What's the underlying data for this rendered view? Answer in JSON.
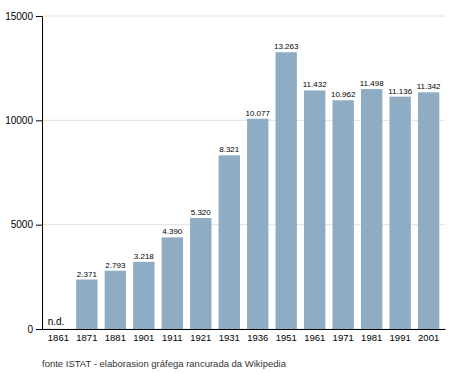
{
  "chart_data": {
    "type": "bar",
    "categories": [
      "1861",
      "1871",
      "1881",
      "1901",
      "1911",
      "1921",
      "1931",
      "1936",
      "1951",
      "1961",
      "1971",
      "1981",
      "1991",
      "2001"
    ],
    "values": [
      null,
      2371,
      2793,
      3218,
      4390,
      5320,
      8321,
      10077,
      13263,
      11432,
      10962,
      11498,
      11136,
      11342
    ],
    "value_labels": [
      "n.d.",
      "2.371",
      "2.793",
      "3.218",
      "4.390",
      "5.320",
      "8.321",
      "10.077",
      "13.263",
      "11.432",
      "10.962",
      "11.498",
      "11.136",
      "11.342"
    ],
    "data_labels": true,
    "color": "#8eacc4",
    "ylim": [
      0,
      15000
    ],
    "yticks": [
      0,
      5000,
      10000,
      15000
    ],
    "grid": true,
    "annotations": [
      "fonte ISTAT - elaborasion gráfega rancurada da Wikipedia"
    ]
  }
}
